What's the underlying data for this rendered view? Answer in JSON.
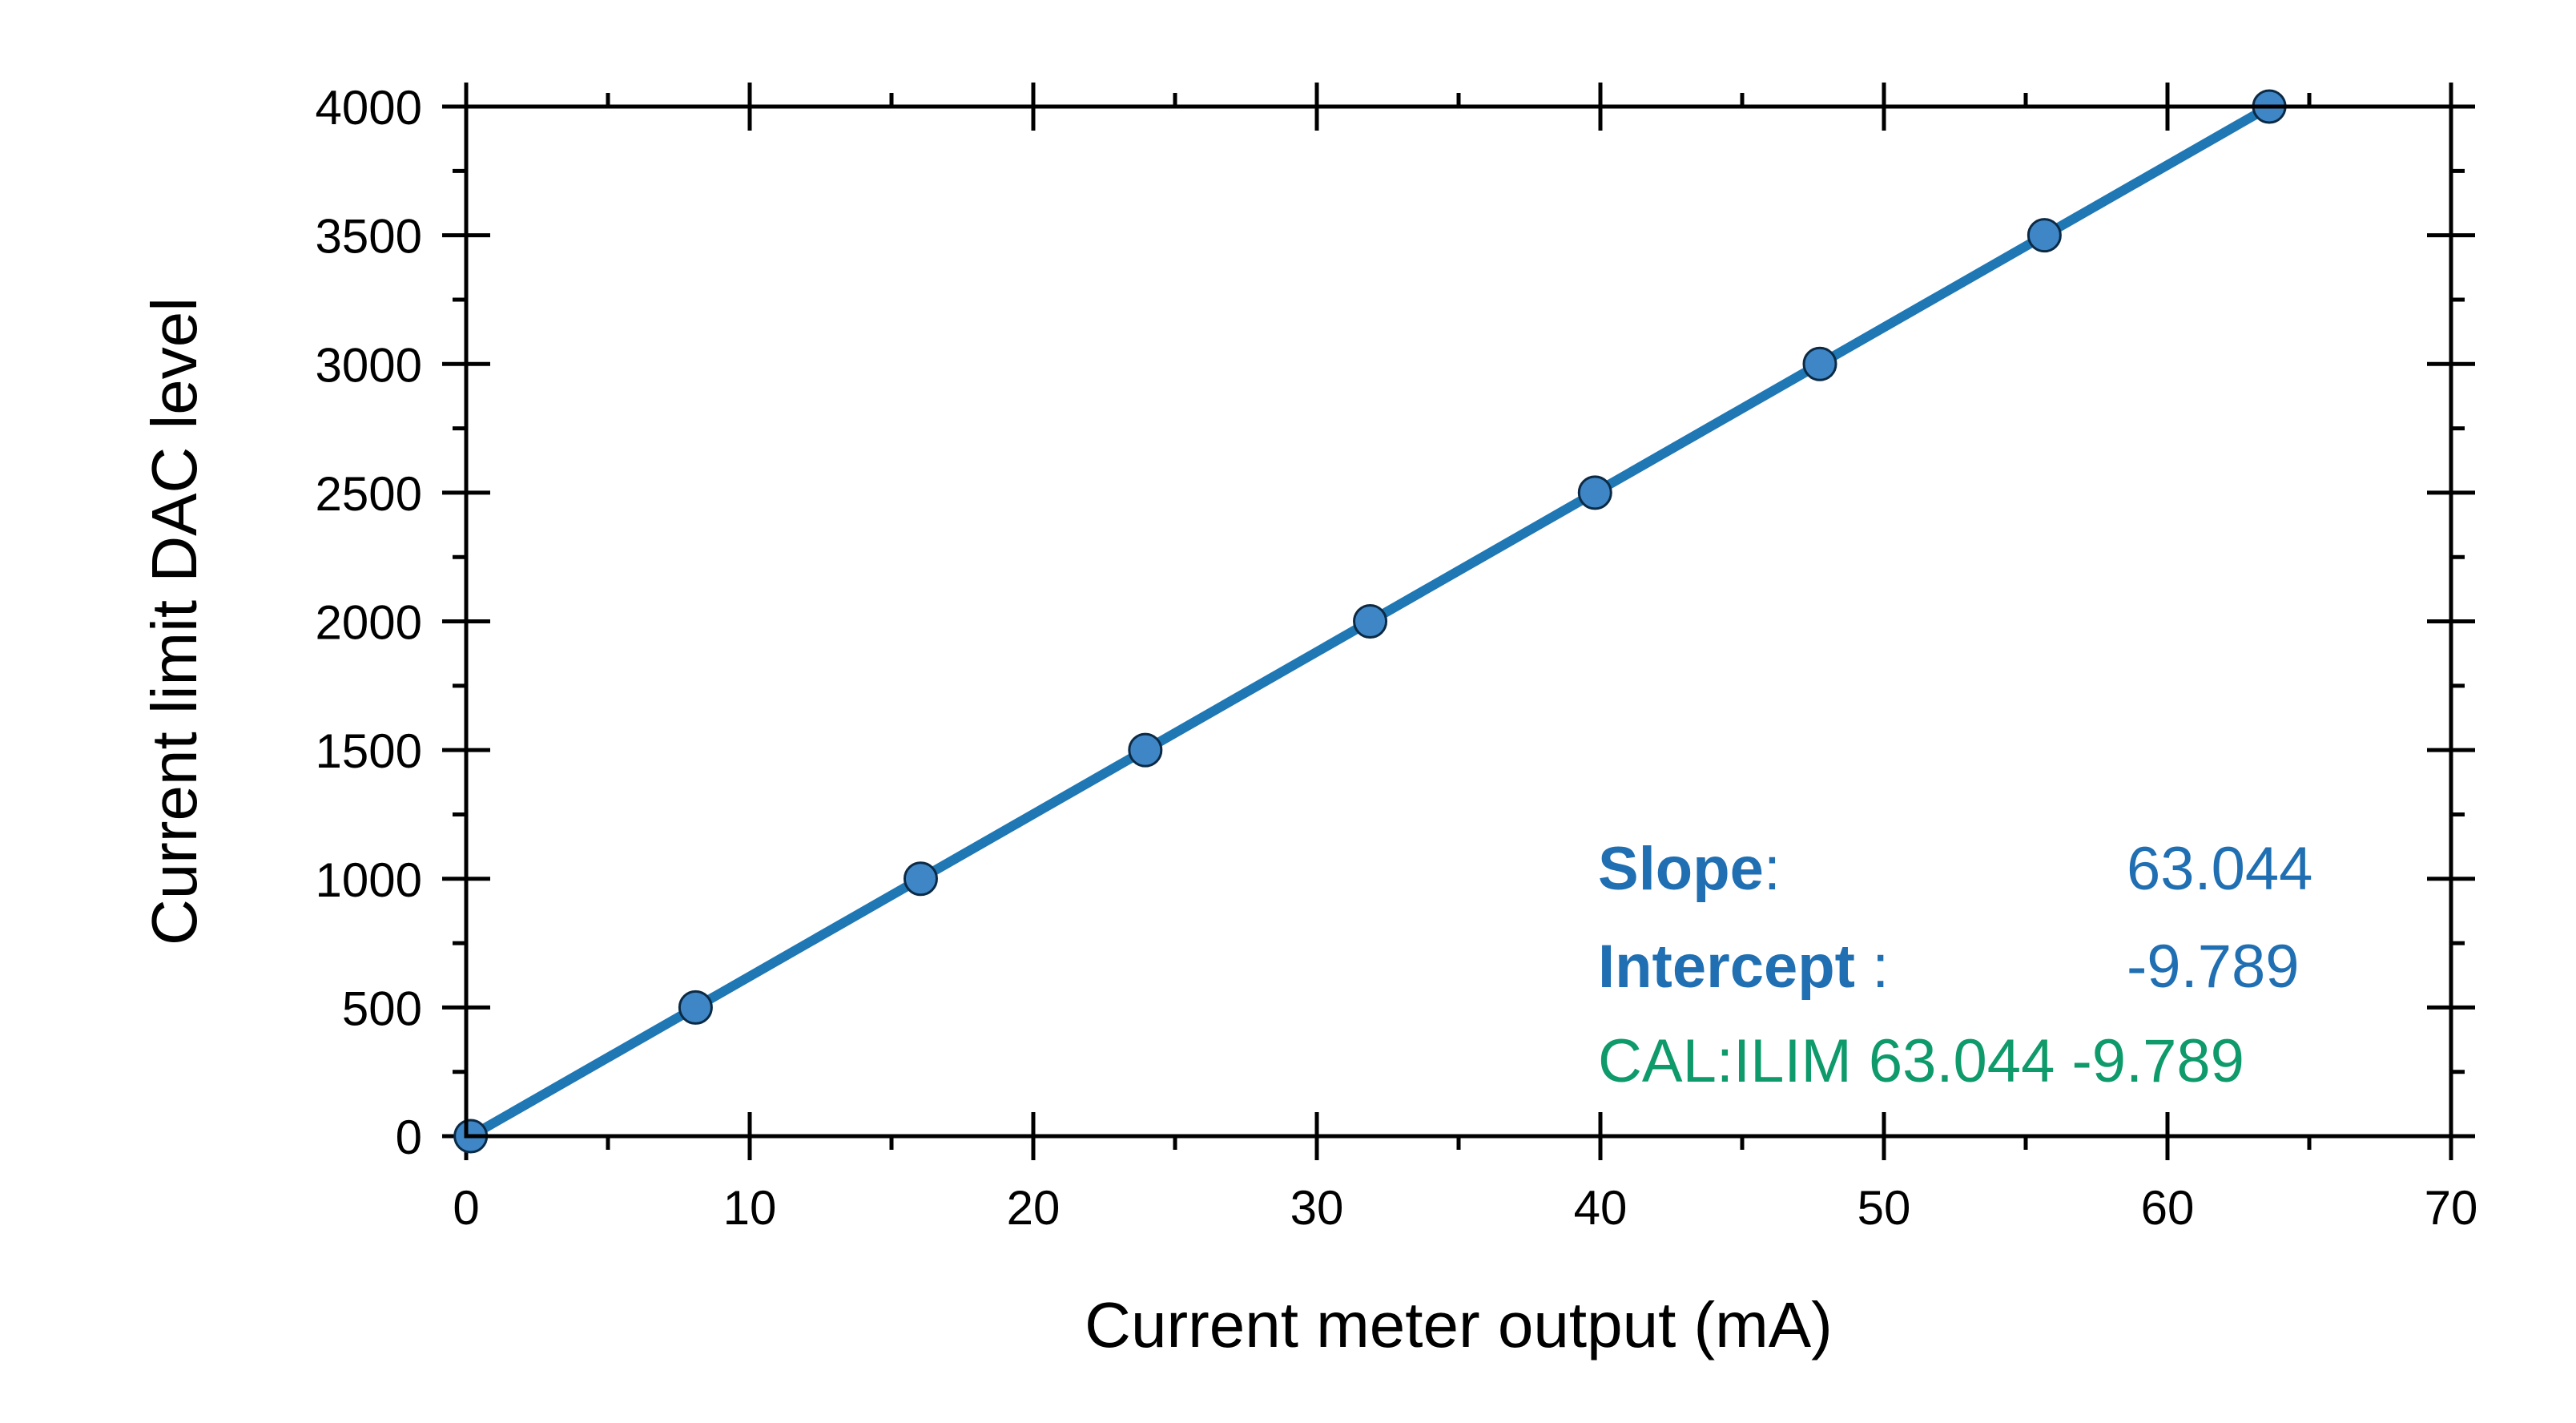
{
  "chart_data": {
    "type": "scatter",
    "title": "",
    "xlabel": "Current meter output (mA)",
    "ylabel": "Current limit DAC level",
    "xlim": [
      0,
      70
    ],
    "ylim": [
      0,
      4000
    ],
    "x_ticks": [
      "0",
      "10",
      "20",
      "30",
      "40",
      "50",
      "60",
      "70"
    ],
    "y_ticks": [
      "0",
      "500",
      "1000",
      "1500",
      "2000",
      "2500",
      "3000",
      "3500",
      "4000"
    ],
    "x_tick_values": [
      0,
      10,
      20,
      30,
      40,
      50,
      60,
      70
    ],
    "y_tick_values": [
      0,
      500,
      1000,
      1500,
      2000,
      2500,
      3000,
      3500,
      4000
    ],
    "grid": false,
    "legend": "none",
    "series": [
      {
        "marker": "circle",
        "line": "linear-fit",
        "color": "#1f77b4",
        "fill": "#3f86c6",
        "x": [
          0.16,
          8.09,
          16.03,
          23.95,
          31.88,
          39.81,
          47.74,
          55.66,
          63.59
        ],
        "y": [
          0,
          500,
          1000,
          1500,
          2000,
          2500,
          3000,
          3500,
          4000
        ]
      }
    ],
    "fit": {
      "slope": 63.044,
      "intercept": -9.789,
      "x_range": [
        0.16,
        63.6
      ]
    },
    "annotations": {
      "slope_label": "Slope",
      "slope_colon": ":",
      "slope_value": "63.044",
      "intercept_label": "Intercept",
      "intercept_colon": " :",
      "intercept_value": "-9.789",
      "command": "CAL:ILIM 63.044 -9.789",
      "label_color": "#1f6fb2",
      "command_color": "#0e9a6a"
    }
  }
}
